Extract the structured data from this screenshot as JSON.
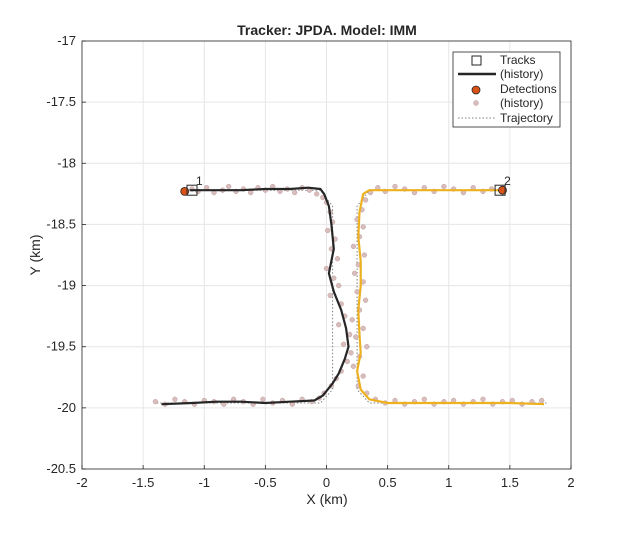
{
  "chart_data": {
    "type": "scatter",
    "title": "Tracker: JPDA. Model: IMM",
    "xlabel": "X (km)",
    "ylabel": "Y (km)",
    "xlim": [
      -2,
      2
    ],
    "ylim": [
      -20.5,
      -17
    ],
    "grid": true,
    "x_ticks": [
      "-2",
      "-1.5",
      "-1",
      "-0.5",
      "0",
      "0.5",
      "1",
      "1.5",
      "2"
    ],
    "y_ticks": [
      "-20.5",
      "-20",
      "-19.5",
      "-19",
      "-18.5",
      "-18",
      "-17.5",
      "-17"
    ],
    "legend": {
      "placement": "top-right",
      "entries": [
        {
          "label": "Tracks",
          "marker": "square"
        },
        {
          "label": "(history)",
          "marker": "line"
        },
        {
          "label": "Detections",
          "marker": "circle"
        },
        {
          "label": "(history)",
          "marker": "dot"
        },
        {
          "label": "Trajectory",
          "marker": "dotted-line"
        }
      ]
    },
    "tracks": [
      {
        "id": "1",
        "color": "#262626",
        "current": [
          -1.1,
          -18.22
        ],
        "history": [
          [
            -1.12,
            -18.22
          ],
          [
            -0.9,
            -18.22
          ],
          [
            -0.7,
            -18.22
          ],
          [
            -0.5,
            -18.21
          ],
          [
            -0.3,
            -18.21
          ],
          [
            -0.15,
            -18.2
          ],
          [
            -0.05,
            -18.21
          ],
          [
            -0.02,
            -18.25
          ],
          [
            0.02,
            -18.35
          ],
          [
            0.04,
            -18.5
          ],
          [
            0.06,
            -18.7
          ],
          [
            0.02,
            -18.9
          ],
          [
            0.06,
            -19.05
          ],
          [
            0.12,
            -19.2
          ],
          [
            0.16,
            -19.35
          ],
          [
            0.18,
            -19.5
          ],
          [
            0.15,
            -19.6
          ],
          [
            0.1,
            -19.72
          ],
          [
            0.05,
            -19.8
          ],
          [
            -0.03,
            -19.9
          ],
          [
            -0.1,
            -19.94
          ],
          [
            -0.3,
            -19.95
          ],
          [
            -0.5,
            -19.96
          ],
          [
            -0.7,
            -19.95
          ],
          [
            -0.9,
            -19.95
          ],
          [
            -1.1,
            -19.96
          ],
          [
            -1.35,
            -19.97
          ]
        ]
      },
      {
        "id": "2",
        "color": "#EDB120",
        "current": [
          1.42,
          -18.22
        ],
        "history": [
          [
            1.42,
            -18.22
          ],
          [
            1.2,
            -18.22
          ],
          [
            1.0,
            -18.22
          ],
          [
            0.8,
            -18.22
          ],
          [
            0.6,
            -18.22
          ],
          [
            0.45,
            -18.22
          ],
          [
            0.35,
            -18.22
          ],
          [
            0.3,
            -18.25
          ],
          [
            0.27,
            -18.4
          ],
          [
            0.26,
            -18.6
          ],
          [
            0.28,
            -18.8
          ],
          [
            0.28,
            -19.0
          ],
          [
            0.26,
            -19.2
          ],
          [
            0.27,
            -19.4
          ],
          [
            0.28,
            -19.55
          ],
          [
            0.25,
            -19.7
          ],
          [
            0.28,
            -19.85
          ],
          [
            0.35,
            -19.93
          ],
          [
            0.5,
            -19.96
          ],
          [
            0.7,
            -19.96
          ],
          [
            0.9,
            -19.96
          ],
          [
            1.1,
            -19.96
          ],
          [
            1.3,
            -19.96
          ],
          [
            1.5,
            -19.96
          ],
          [
            1.78,
            -19.97
          ]
        ]
      }
    ],
    "current_detections": [
      [
        -1.16,
        -18.23
      ],
      [
        1.44,
        -18.22
      ]
    ],
    "detections_history": [
      [
        -1.1,
        -18.21
      ],
      [
        -1.05,
        -18.23
      ],
      [
        -0.98,
        -18.2
      ],
      [
        -0.92,
        -18.24
      ],
      [
        -0.85,
        -18.22
      ],
      [
        -0.8,
        -18.19
      ],
      [
        -0.74,
        -18.23
      ],
      [
        -0.68,
        -18.21
      ],
      [
        -0.62,
        -18.24
      ],
      [
        -0.56,
        -18.2
      ],
      [
        -0.5,
        -18.22
      ],
      [
        -0.44,
        -18.19
      ],
      [
        -0.38,
        -18.23
      ],
      [
        -0.32,
        -18.21
      ],
      [
        -0.26,
        -18.24
      ],
      [
        -0.2,
        -18.2
      ],
      [
        -0.14,
        -18.22
      ],
      [
        -0.08,
        -18.25
      ],
      [
        -0.03,
        -18.28
      ],
      [
        0.0,
        -18.32
      ],
      [
        0.03,
        -18.4
      ],
      [
        0.05,
        -18.48
      ],
      [
        0.01,
        -18.55
      ],
      [
        0.07,
        -18.62
      ],
      [
        0.04,
        -18.7
      ],
      [
        0.09,
        -18.78
      ],
      [
        0.0,
        -18.86
      ],
      [
        0.06,
        -18.94
      ],
      [
        0.1,
        -19.0
      ],
      [
        0.03,
        -19.08
      ],
      [
        0.12,
        -19.15
      ],
      [
        0.15,
        -19.25
      ],
      [
        0.1,
        -19.32
      ],
      [
        0.19,
        -19.4
      ],
      [
        0.14,
        -19.48
      ],
      [
        0.2,
        -19.55
      ],
      [
        0.17,
        -19.62
      ],
      [
        0.12,
        -19.7
      ],
      [
        0.08,
        -19.76
      ],
      [
        0.04,
        -19.82
      ],
      [
        -0.02,
        -19.88
      ],
      [
        -0.06,
        -19.92
      ],
      [
        -0.12,
        -19.95
      ],
      [
        -0.2,
        -19.93
      ],
      [
        -0.28,
        -19.97
      ],
      [
        -0.36,
        -19.94
      ],
      [
        -0.44,
        -19.96
      ],
      [
        -0.52,
        -19.93
      ],
      [
        -0.6,
        -19.97
      ],
      [
        -0.68,
        -19.95
      ],
      [
        -0.76,
        -19.93
      ],
      [
        -0.84,
        -19.97
      ],
      [
        -0.92,
        -19.95
      ],
      [
        -1.0,
        -19.94
      ],
      [
        -1.08,
        -19.97
      ],
      [
        -1.16,
        -19.95
      ],
      [
        -1.24,
        -19.93
      ],
      [
        -1.32,
        -19.97
      ],
      [
        -1.4,
        -19.95
      ],
      [
        1.35,
        -18.21
      ],
      [
        1.28,
        -18.23
      ],
      [
        1.2,
        -18.2
      ],
      [
        1.12,
        -18.24
      ],
      [
        1.04,
        -18.21
      ],
      [
        0.96,
        -18.19
      ],
      [
        0.88,
        -18.23
      ],
      [
        0.8,
        -18.2
      ],
      [
        0.72,
        -18.24
      ],
      [
        0.64,
        -18.21
      ],
      [
        0.56,
        -18.19
      ],
      [
        0.48,
        -18.23
      ],
      [
        0.42,
        -18.2
      ],
      [
        0.36,
        -18.24
      ],
      [
        0.32,
        -18.3
      ],
      [
        0.29,
        -18.38
      ],
      [
        0.25,
        -18.46
      ],
      [
        0.3,
        -18.52
      ],
      [
        0.27,
        -18.6
      ],
      [
        0.22,
        -18.68
      ],
      [
        0.31,
        -18.75
      ],
      [
        0.26,
        -18.83
      ],
      [
        0.23,
        -18.9
      ],
      [
        0.3,
        -18.97
      ],
      [
        0.25,
        -19.05
      ],
      [
        0.32,
        -19.12
      ],
      [
        0.27,
        -19.2
      ],
      [
        0.21,
        -19.28
      ],
      [
        0.3,
        -19.35
      ],
      [
        0.24,
        -19.42
      ],
      [
        0.33,
        -19.5
      ],
      [
        0.27,
        -19.58
      ],
      [
        0.22,
        -19.66
      ],
      [
        0.3,
        -19.74
      ],
      [
        0.26,
        -19.82
      ],
      [
        0.33,
        -19.88
      ],
      [
        0.4,
        -19.93
      ],
      [
        0.48,
        -19.96
      ],
      [
        0.56,
        -19.94
      ],
      [
        0.64,
        -19.97
      ],
      [
        0.72,
        -19.95
      ],
      [
        0.8,
        -19.93
      ],
      [
        0.88,
        -19.97
      ],
      [
        0.96,
        -19.95
      ],
      [
        1.04,
        -19.94
      ],
      [
        1.12,
        -19.97
      ],
      [
        1.2,
        -19.95
      ],
      [
        1.28,
        -19.93
      ],
      [
        1.36,
        -19.97
      ],
      [
        1.44,
        -19.95
      ],
      [
        1.52,
        -19.94
      ],
      [
        1.6,
        -19.97
      ],
      [
        1.68,
        -19.95
      ],
      [
        1.76,
        -19.94
      ]
    ],
    "trajectories": [
      [
        [
          -1.12,
          -18.22
        ],
        [
          -0.05,
          -18.22
        ],
        [
          0.05,
          -18.35
        ],
        [
          0.05,
          -19.85
        ],
        [
          -0.05,
          -19.96
        ],
        [
          -1.4,
          -19.96
        ]
      ],
      [
        [
          1.45,
          -18.22
        ],
        [
          0.35,
          -18.22
        ],
        [
          0.25,
          -18.35
        ],
        [
          0.25,
          -19.85
        ],
        [
          0.35,
          -19.96
        ],
        [
          1.8,
          -19.96
        ]
      ]
    ]
  }
}
